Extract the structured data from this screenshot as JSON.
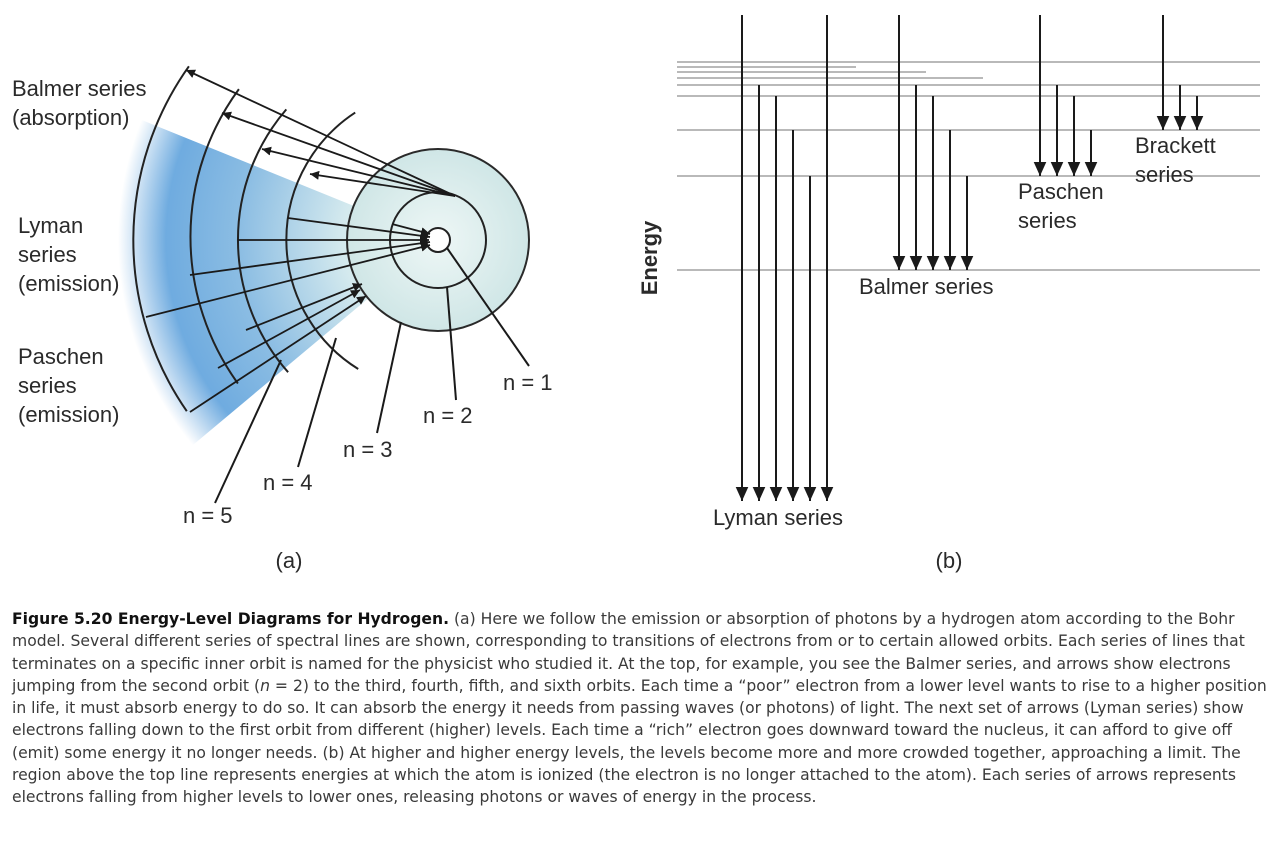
{
  "panel_a": {
    "series_labels": [
      [
        "Balmer series",
        "(absorption)"
      ],
      [
        "Lyman",
        "series",
        "(emission)"
      ],
      [
        "Paschen",
        "series",
        "(emission)"
      ]
    ],
    "orbit_labels": [
      "n = 1",
      "n = 2",
      "n = 3",
      "n = 4",
      "n = 5"
    ],
    "panel_label": "(a)"
  },
  "panel_b": {
    "axis_label": "Energy",
    "series_labels": {
      "lyman": "Lyman series",
      "balmer": "Balmer series",
      "paschen": [
        "Paschen",
        "series"
      ],
      "brackett": [
        "Brackett",
        "series"
      ]
    },
    "panel_label": "(b)"
  },
  "caption": {
    "title": "Figure 5.20 Energy-Level Diagrams for Hydrogen.",
    "text_before_n": " (a) Here we follow the emission or absorption of photons by a hydrogen atom according to the Bohr model. Several different series of spectral lines are shown, corresponding to transitions of electrons from or to certain allowed orbits. Each series of lines that terminates on a specific inner orbit is named for the physicist who studied it. At the top, for example, you see the Balmer series, and arrows show electrons jumping from the second orbit (",
    "n_symbol": "n",
    "text_after_n": " = 2) to the third, fourth, fifth, and sixth orbits. Each time a “poor” electron from a lower level wants to rise to a higher position in life, it must absorb energy to do so. It can absorb the energy it needs from passing waves (or photons) of light. The next set of arrows (Lyman series) show electrons falling down to the first orbit from different (higher) levels. Each time a “rich” electron goes downward toward the nucleus, it can afford to give off (emit) some energy it no longer needs. (b) At higher and higher energy levels, the levels become more and more crowded together, approaching a limit. The region above the top line represents energies at which the atom is ionized (the electron is no longer attached to the atom). Each series of arrows represents electrons falling from higher levels to lower ones, releasing photons or waves of energy in the process."
  }
}
